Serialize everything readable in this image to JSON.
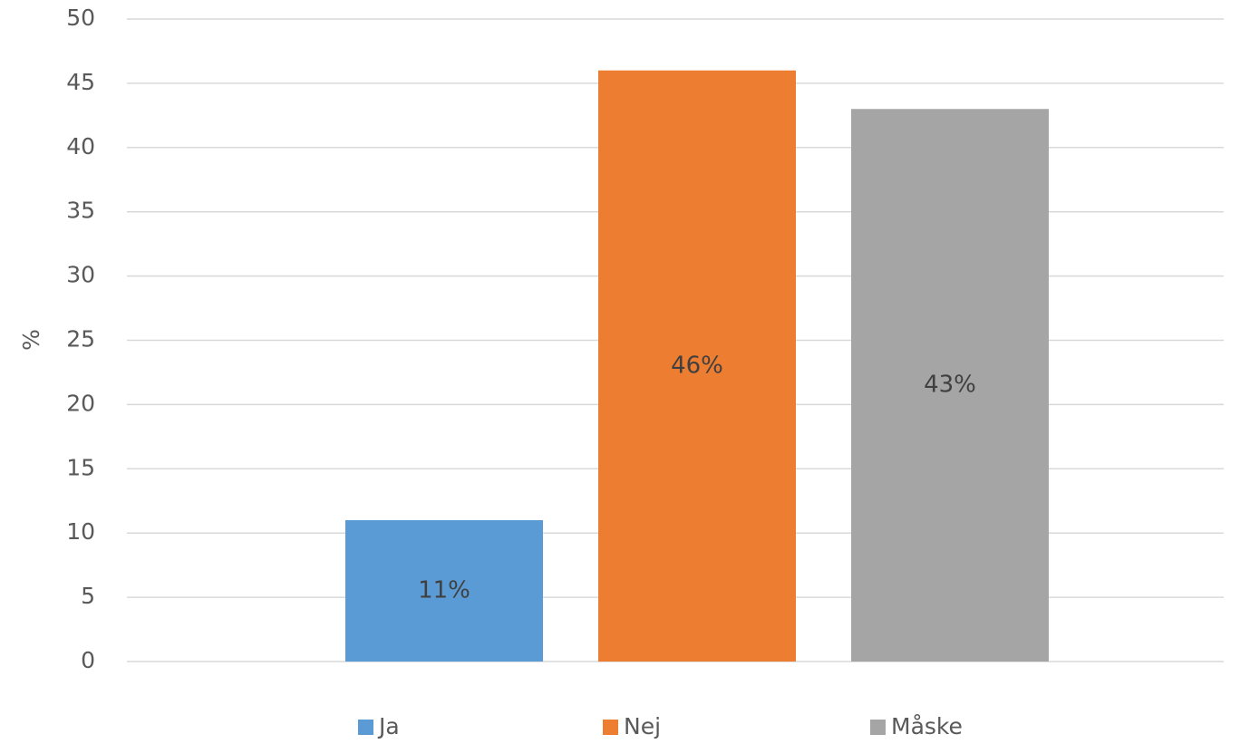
{
  "chart_data": {
    "type": "bar",
    "y_label": "%",
    "categories": [
      null
    ],
    "series": [
      {
        "name": "Ja",
        "color": "#5b9bd5",
        "values": [
          11
        ],
        "value_labels": [
          "11%"
        ]
      },
      {
        "name": "Nej",
        "color": "#ed7d31",
        "values": [
          46
        ],
        "value_labels": [
          "46%"
        ]
      },
      {
        "name": "Måske",
        "color": "#a5a5a5",
        "values": [
          43
        ],
        "value_labels": [
          "43%"
        ]
      }
    ],
    "ylim": [
      0,
      50
    ],
    "yticks": [
      0,
      5,
      10,
      15,
      20,
      25,
      30,
      35,
      40,
      45,
      50
    ],
    "grid": true,
    "legend": "bottom"
  }
}
